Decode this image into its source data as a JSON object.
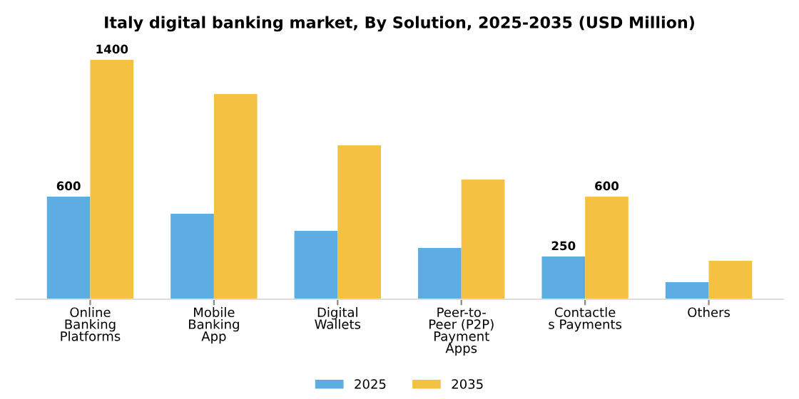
{
  "chart_data": {
    "type": "bar",
    "title": "Italy digital banking market, By Solution, 2025-2035 (USD Million)",
    "categories": [
      "Online\nBanking\nPlatforms",
      "Mobile\nBanking\nApp",
      "Digital\nWallets",
      "Peer-to-\nPeer (P2P)\nPayment\nApps",
      "Contactle\ns Payments",
      "Others"
    ],
    "series": [
      {
        "name": "2025",
        "color": "#5dade2",
        "values": [
          600,
          500,
          400,
          300,
          250,
          100
        ],
        "value_labels": [
          "600",
          null,
          null,
          null,
          "250",
          null
        ]
      },
      {
        "name": "2035",
        "color": "#f5c142",
        "values": [
          1400,
          1200,
          900,
          700,
          600,
          225
        ],
        "value_labels": [
          "1400",
          null,
          null,
          null,
          "600",
          null
        ]
      }
    ],
    "legend": "bottom",
    "grid": false
  }
}
